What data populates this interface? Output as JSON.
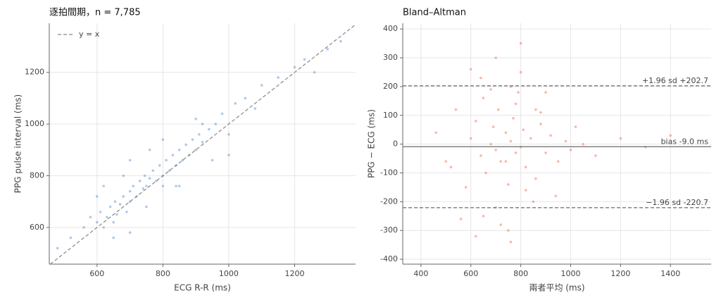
{
  "chart_data": [
    {
      "type": "scatter",
      "title": "逐拍間期，n = 7,785",
      "x_label": "ECG R-R  (ms)",
      "y_label": "PPG pulse interval  (ms)",
      "color": "#4a8ad8",
      "grid": true,
      "reference_line": {
        "label": "y = x",
        "color": "#888888"
      },
      "xlim": [
        455,
        1385
      ],
      "ylim": [
        458,
        1390
      ],
      "xticks": [
        600,
        800,
        1000,
        1200
      ],
      "yticks": [
        600,
        800,
        1000,
        1200
      ],
      "x": [
        480,
        520,
        560,
        580,
        600,
        610,
        620,
        630,
        640,
        650,
        655,
        660,
        670,
        680,
        690,
        700,
        700,
        710,
        720,
        730,
        740,
        745,
        750,
        760,
        770,
        780,
        790,
        800,
        800,
        810,
        820,
        830,
        840,
        850,
        860,
        870,
        880,
        890,
        900,
        910,
        920,
        940,
        960,
        980,
        1000,
        1020,
        1050,
        1080,
        1100,
        1150,
        1200,
        1230,
        1260,
        1300,
        1340,
        620,
        650,
        700,
        750,
        800,
        850,
        900,
        950,
        700,
        600,
        680,
        760,
        840,
        920,
        1000
      ],
      "y": [
        520,
        560,
        600,
        640,
        620,
        660,
        600,
        640,
        680,
        620,
        700,
        650,
        690,
        720,
        660,
        740,
        700,
        760,
        720,
        780,
        750,
        800,
        760,
        790,
        820,
        780,
        840,
        800,
        760,
        860,
        820,
        880,
        840,
        900,
        860,
        920,
        880,
        940,
        900,
        960,
        930,
        980,
        1000,
        1040,
        960,
        1080,
        1100,
        1060,
        1150,
        1180,
        1220,
        1250,
        1200,
        1290,
        1320,
        760,
        560,
        860,
        680,
        940,
        760,
        1020,
        860,
        580,
        720,
        800,
        900,
        760,
        1000,
        880
      ]
    },
    {
      "type": "scatter",
      "title": "Bland–Altman",
      "x_label": "兩者平均  (ms)",
      "y_label": "PPG − ECG  (ms)",
      "color": "#e8683c",
      "grid": true,
      "xlim": [
        327,
        1563
      ],
      "ylim": [
        -417,
        420
      ],
      "xticks": [
        400,
        600,
        800,
        1000,
        1200,
        1400
      ],
      "yticks": [
        -400,
        -300,
        -200,
        -100,
        0,
        100,
        200,
        300,
        400
      ],
      "hlines": [
        {
          "value": 202.7,
          "label": "+1.96 sd +202.7",
          "style": "dashed"
        },
        {
          "value": -9.0,
          "label": "bias -9.0 ms",
          "style": "solid"
        },
        {
          "value": -220.7,
          "label": "−1.96 sd -220.7",
          "style": "dashed"
        }
      ],
      "x": [
        460,
        500,
        540,
        580,
        600,
        620,
        640,
        650,
        660,
        680,
        690,
        700,
        710,
        720,
        740,
        750,
        760,
        770,
        780,
        790,
        800,
        810,
        820,
        840,
        860,
        880,
        900,
        920,
        950,
        980,
        1000,
        1050,
        1100,
        1200,
        1300,
        1400,
        600,
        650,
        700,
        750,
        800,
        850,
        700,
        760,
        820,
        640,
        720,
        780,
        860,
        940,
        560,
        680,
        740,
        800,
        880,
        520,
        620,
        1020,
        900,
        760
      ],
      "y": [
        40,
        -60,
        120,
        -150,
        20,
        80,
        -40,
        160,
        -100,
        0,
        60,
        -20,
        120,
        -60,
        40,
        -140,
        10,
        90,
        -30,
        180,
        -10,
        50,
        -80,
        20,
        -120,
        70,
        -30,
        30,
        -60,
        10,
        -20,
        0,
        -40,
        20,
        -10,
        30,
        260,
        -250,
        300,
        -300,
        250,
        -200,
        -220,
        200,
        -160,
        230,
        -280,
        140,
        120,
        -180,
        -260,
        190,
        -60,
        350,
        110,
        -80,
        -320,
        60,
        180,
        -340
      ]
    }
  ]
}
